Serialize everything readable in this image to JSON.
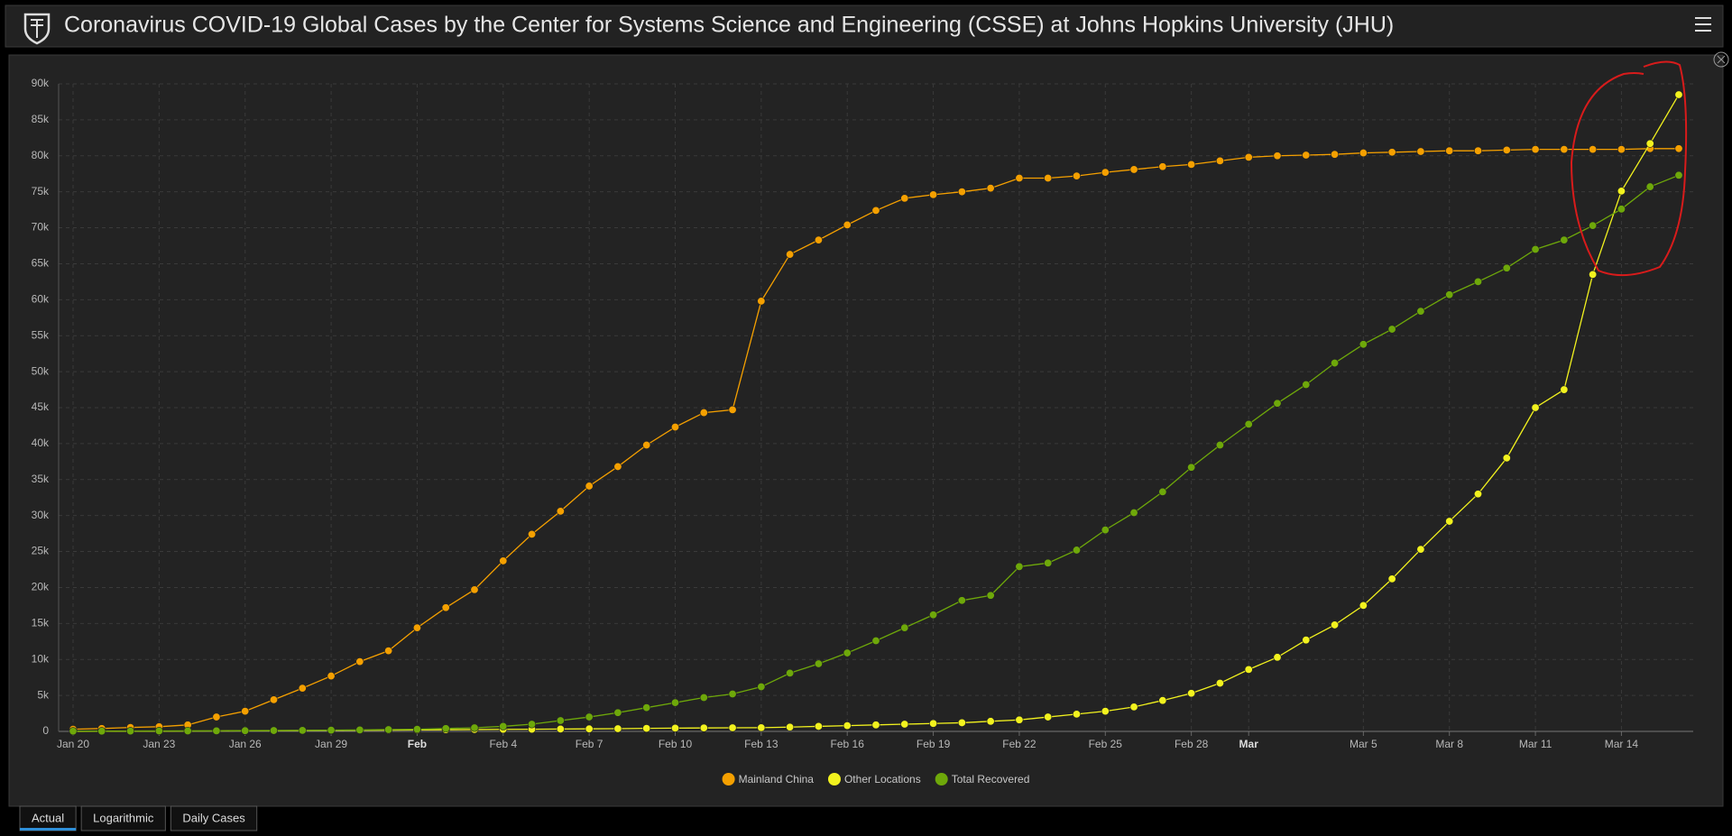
{
  "header": {
    "title": "Coronavirus COVID-19 Global Cases by the Center for Systems Science and Engineering (CSSE) at Johns Hopkins University (JHU)"
  },
  "chart_data": {
    "type": "line",
    "categories": [
      "Jan 20",
      null,
      null,
      "Jan 23",
      null,
      null,
      "Jan 26",
      null,
      null,
      "Jan 29",
      null,
      null,
      "Feb",
      null,
      null,
      "Feb 4",
      null,
      null,
      "Feb 7",
      null,
      null,
      "Feb 10",
      null,
      null,
      "Feb 13",
      null,
      null,
      "Feb 16",
      null,
      null,
      "Feb 19",
      null,
      null,
      "Feb 22",
      null,
      null,
      "Feb 25",
      null,
      null,
      "Feb 28",
      null,
      "Mar",
      null,
      null,
      null,
      "Mar 5",
      null,
      null,
      "Mar 8",
      null,
      null,
      "Mar 11",
      null,
      null,
      "Mar 14",
      null,
      null
    ],
    "series": [
      {
        "name": "Mainland China",
        "color": "#f5a000",
        "values": [
          300,
          400,
          550,
          650,
          900,
          2000,
          2800,
          4400,
          6000,
          7700,
          9700,
          11200,
          14400,
          17200,
          19700,
          23700,
          27400,
          30600,
          34100,
          36800,
          39800,
          42300,
          44300,
          44700,
          59800,
          66300,
          68300,
          70400,
          72400,
          74100,
          74600,
          75000,
          75500,
          76900,
          76900,
          77200,
          77700,
          78100,
          78500,
          78800,
          79300,
          79800,
          80000,
          80100,
          80200,
          80400,
          80500,
          80600,
          80700,
          80700,
          80800,
          80900,
          80900,
          80900,
          80900,
          81000,
          81000
        ]
      },
      {
        "name": "Other Locations",
        "color": "#f2f21e",
        "values": [
          10,
          20,
          30,
          40,
          50,
          60,
          80,
          100,
          120,
          140,
          160,
          180,
          200,
          230,
          260,
          280,
          300,
          330,
          350,
          380,
          420,
          450,
          480,
          500,
          520,
          600,
          700,
          800,
          900,
          1000,
          1100,
          1200,
          1400,
          1600,
          2000,
          2400,
          2800,
          3400,
          4300,
          5300,
          6700,
          8600,
          10300,
          12700,
          14800,
          17500,
          21200,
          25300,
          29200,
          33000,
          38000,
          45000,
          47500,
          63500,
          75100,
          81700,
          88500
        ]
      },
      {
        "name": "Total Recovered",
        "color": "#6ea80a",
        "values": [
          30,
          40,
          50,
          60,
          70,
          80,
          100,
          120,
          140,
          170,
          200,
          250,
          300,
          400,
          500,
          700,
          1000,
          1500,
          2000,
          2600,
          3300,
          4000,
          4700,
          5200,
          6200,
          8100,
          9400,
          10900,
          12600,
          14400,
          16200,
          18200,
          18900,
          22900,
          23400,
          25200,
          28000,
          30400,
          33300,
          36700,
          39800,
          42700,
          45600,
          48200,
          51200,
          53800,
          55900,
          58400,
          60700,
          62500,
          64400,
          67000,
          68300,
          70300,
          72600,
          75700,
          77300
        ]
      }
    ],
    "ylim": [
      0,
      90000
    ],
    "yticks": [
      0,
      {
        "value": 5000,
        "label": "5k"
      },
      {
        "value": 10000,
        "label": "10k"
      },
      {
        "value": 15000,
        "label": "15k"
      },
      {
        "value": 20000,
        "label": "20k"
      },
      {
        "value": 25000,
        "label": "25k"
      },
      {
        "value": 30000,
        "label": "30k"
      },
      {
        "value": 35000,
        "label": "35k"
      },
      {
        "value": 40000,
        "label": "40k"
      },
      {
        "value": 45000,
        "label": "45k"
      },
      {
        "value": 50000,
        "label": "50k"
      },
      {
        "value": 55000,
        "label": "55k"
      },
      {
        "value": 60000,
        "label": "60k"
      },
      {
        "value": 65000,
        "label": "65k"
      },
      {
        "value": 70000,
        "label": "70k"
      },
      {
        "value": 75000,
        "label": "75k"
      },
      {
        "value": 80000,
        "label": "80k"
      },
      {
        "value": 85000,
        "label": "85k"
      },
      {
        "value": 90000,
        "label": "90k"
      }
    ],
    "grid": true,
    "legend": "bottom"
  },
  "tabs": [
    "Actual",
    "Logarithmic",
    "Daily Cases"
  ]
}
